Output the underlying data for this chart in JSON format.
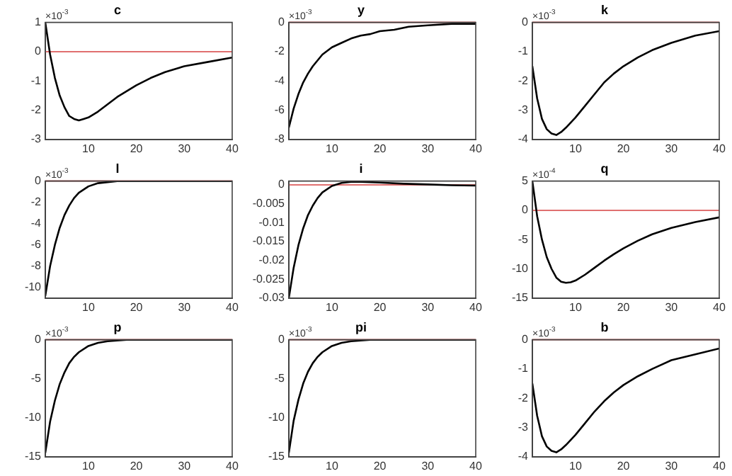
{
  "chart_data": [
    {
      "type": "line",
      "title": "c",
      "annotations": [
        "×10$^{-3}$"
      ],
      "color": "#000000",
      "x": [
        1,
        2,
        3,
        4,
        5,
        6,
        7,
        8,
        9,
        10,
        12,
        14,
        16,
        18,
        20,
        23,
        26,
        30,
        35,
        40
      ],
      "values": [
        1,
        -0.1,
        -0.9,
        -1.5,
        -1.9,
        -2.2,
        -2.3,
        -2.35,
        -2.3,
        -2.25,
        -2.05,
        -1.8,
        -1.55,
        -1.35,
        -1.15,
        -0.9,
        -0.7,
        -0.5,
        -0.35,
        -0.2
      ],
      "xlim": [
        1,
        40
      ],
      "xticks": [
        10,
        20,
        30,
        40
      ],
      "ylim": [
        -3,
        1
      ],
      "yticks": [
        -3,
        -2,
        -1,
        0,
        1
      ],
      "ref_lines": [
        {
          "axis": "y",
          "value": 0,
          "color": "#e07070"
        }
      ]
    },
    {
      "type": "line",
      "title": "y",
      "annotations": [
        "×10$^{-3}$"
      ],
      "color": "#000000",
      "x": [
        1,
        2,
        3,
        4,
        5,
        6,
        7,
        8,
        10,
        12,
        14,
        16,
        18,
        20,
        23,
        26,
        30,
        35,
        40
      ],
      "values": [
        -7.2,
        -5.9,
        -4.9,
        -4.1,
        -3.5,
        -3,
        -2.6,
        -2.2,
        -1.7,
        -1.4,
        -1.1,
        -0.9,
        -0.8,
        -0.6,
        -0.5,
        -0.3,
        -0.2,
        -0.1,
        -0.1
      ],
      "xlim": [
        1,
        40
      ],
      "xticks": [
        10,
        20,
        30,
        40
      ],
      "ylim": [
        -8,
        0
      ],
      "yticks": [
        -8,
        -6,
        -4,
        -2,
        0
      ],
      "ref_lines": [
        {
          "axis": "y",
          "value": 0,
          "color": "#e07070"
        }
      ]
    },
    {
      "type": "line",
      "title": "k",
      "annotations": [
        "×10$^{-3}$"
      ],
      "color": "#000000",
      "x": [
        1,
        2,
        3,
        4,
        5,
        6,
        7,
        8,
        10,
        12,
        14,
        16,
        18,
        20,
        23,
        26,
        30,
        35,
        40
      ],
      "values": [
        -1.5,
        -2.6,
        -3.3,
        -3.65,
        -3.8,
        -3.85,
        -3.75,
        -3.6,
        -3.25,
        -2.85,
        -2.45,
        -2.05,
        -1.75,
        -1.5,
        -1.2,
        -0.95,
        -0.7,
        -0.45,
        -0.3
      ],
      "xlim": [
        1,
        40
      ],
      "xticks": [
        10,
        20,
        30,
        40
      ],
      "ylim": [
        -4,
        0
      ],
      "yticks": [
        -4,
        -3,
        -2,
        -1,
        0
      ],
      "ref_lines": [
        {
          "axis": "y",
          "value": 0,
          "color": "#e07070"
        }
      ]
    },
    {
      "type": "line",
      "title": "l",
      "annotations": [
        "×10$^{-3}$"
      ],
      "color": "#000000",
      "x": [
        1,
        2,
        3,
        4,
        5,
        6,
        7,
        8,
        10,
        12,
        14,
        16,
        20,
        25,
        30,
        40
      ],
      "values": [
        -10.8,
        -8,
        -6,
        -4.4,
        -3.2,
        -2.3,
        -1.6,
        -1.1,
        -0.5,
        -0.2,
        -0.1,
        0,
        0,
        0,
        0,
        0
      ],
      "xlim": [
        1,
        40
      ],
      "xticks": [
        10,
        20,
        30,
        40
      ],
      "ylim": [
        -11,
        0
      ],
      "yticks": [
        -10,
        -8,
        -6,
        -4,
        -2,
        0
      ],
      "ref_lines": [
        {
          "axis": "y",
          "value": 0,
          "color": "#e07070"
        }
      ]
    },
    {
      "type": "line",
      "title": "i",
      "color": "#000000",
      "x": [
        1,
        2,
        3,
        4,
        5,
        6,
        7,
        8,
        10,
        12,
        14,
        16,
        20,
        25,
        30,
        35,
        40
      ],
      "values": [
        -0.03,
        -0.022,
        -0.016,
        -0.0115,
        -0.008,
        -0.0055,
        -0.0035,
        -0.002,
        -0.0003,
        0.0005,
        0.0008,
        0.0008,
        0.0006,
        0.0003,
        0.0001,
        -0.0001,
        -0.0002
      ],
      "xlim": [
        1,
        40
      ],
      "xticks": [
        10,
        20,
        30,
        40
      ],
      "ylim": [
        -0.03,
        0.001
      ],
      "yticks": [
        -0.03,
        -0.025,
        -0.02,
        -0.015,
        -0.01,
        -0.005,
        0
      ],
      "ref_lines": [
        {
          "axis": "y",
          "value": 0,
          "color": "#e07070"
        }
      ]
    },
    {
      "type": "line",
      "title": "q",
      "annotations": [
        "×10$^{-4}$"
      ],
      "color": "#000000",
      "x": [
        1,
        2,
        3,
        4,
        5,
        6,
        7,
        8,
        9,
        10,
        12,
        14,
        16,
        18,
        20,
        23,
        26,
        30,
        35,
        40
      ],
      "values": [
        5,
        -1,
        -5,
        -8,
        -10,
        -11.5,
        -12.2,
        -12.4,
        -12.3,
        -12,
        -11,
        -9.8,
        -8.6,
        -7.5,
        -6.5,
        -5.2,
        -4.1,
        -3,
        -2,
        -1.2
      ],
      "xlim": [
        1,
        40
      ],
      "xticks": [
        10,
        20,
        30,
        40
      ],
      "ylim": [
        -15,
        5
      ],
      "yticks": [
        -15,
        -10,
        -5,
        0,
        5
      ],
      "ref_lines": [
        {
          "axis": "y",
          "value": 0,
          "color": "#e07070"
        }
      ]
    },
    {
      "type": "line",
      "title": "p",
      "annotations": [
        "×10$^{-3}$"
      ],
      "color": "#000000",
      "x": [
        1,
        2,
        3,
        4,
        5,
        6,
        7,
        8,
        10,
        12,
        14,
        16,
        18,
        20,
        30,
        40
      ],
      "values": [
        -14.5,
        -10.5,
        -7.8,
        -5.7,
        -4.2,
        -3,
        -2.2,
        -1.6,
        -0.8,
        -0.4,
        -0.2,
        -0.1,
        0,
        0,
        0,
        0
      ],
      "xlim": [
        1,
        40
      ],
      "xticks": [
        10,
        20,
        30,
        40
      ],
      "ylim": [
        -15,
        0
      ],
      "yticks": [
        -15,
        -10,
        -5,
        0
      ],
      "ref_lines": [
        {
          "axis": "y",
          "value": 0,
          "color": "#e07070"
        }
      ]
    },
    {
      "type": "line",
      "title": "pi",
      "annotations": [
        "×10$^{-3}$"
      ],
      "color": "#000000",
      "x": [
        1,
        2,
        3,
        4,
        5,
        6,
        7,
        8,
        10,
        12,
        14,
        16,
        18,
        20,
        30,
        40
      ],
      "values": [
        -14.5,
        -10.4,
        -7.7,
        -5.6,
        -4.1,
        -3,
        -2.2,
        -1.6,
        -0.8,
        -0.4,
        -0.2,
        -0.1,
        0,
        0,
        0,
        0
      ],
      "xlim": [
        1,
        40
      ],
      "xticks": [
        10,
        20,
        30,
        40
      ],
      "ylim": [
        -15,
        0
      ],
      "yticks": [
        -15,
        -10,
        -5,
        0
      ],
      "ref_lines": [
        {
          "axis": "y",
          "value": 0,
          "color": "#e07070"
        }
      ]
    },
    {
      "type": "line",
      "title": "b",
      "annotations": [
        "×10$^{-3}$"
      ],
      "color": "#000000",
      "x": [
        1,
        2,
        3,
        4,
        5,
        6,
        7,
        8,
        10,
        12,
        14,
        16,
        18,
        20,
        23,
        26,
        30,
        35,
        40
      ],
      "values": [
        -1.5,
        -2.6,
        -3.3,
        -3.65,
        -3.8,
        -3.85,
        -3.75,
        -3.6,
        -3.25,
        -2.85,
        -2.45,
        -2.1,
        -1.8,
        -1.55,
        -1.25,
        -1,
        -0.7,
        -0.5,
        -0.3
      ],
      "xlim": [
        1,
        40
      ],
      "xticks": [
        10,
        20,
        30,
        40
      ],
      "ylim": [
        -4,
        0
      ],
      "yticks": [
        -4,
        -3,
        -2,
        -1,
        0
      ],
      "ref_lines": [
        {
          "axis": "y",
          "value": 0,
          "color": "#e07070"
        }
      ]
    }
  ]
}
